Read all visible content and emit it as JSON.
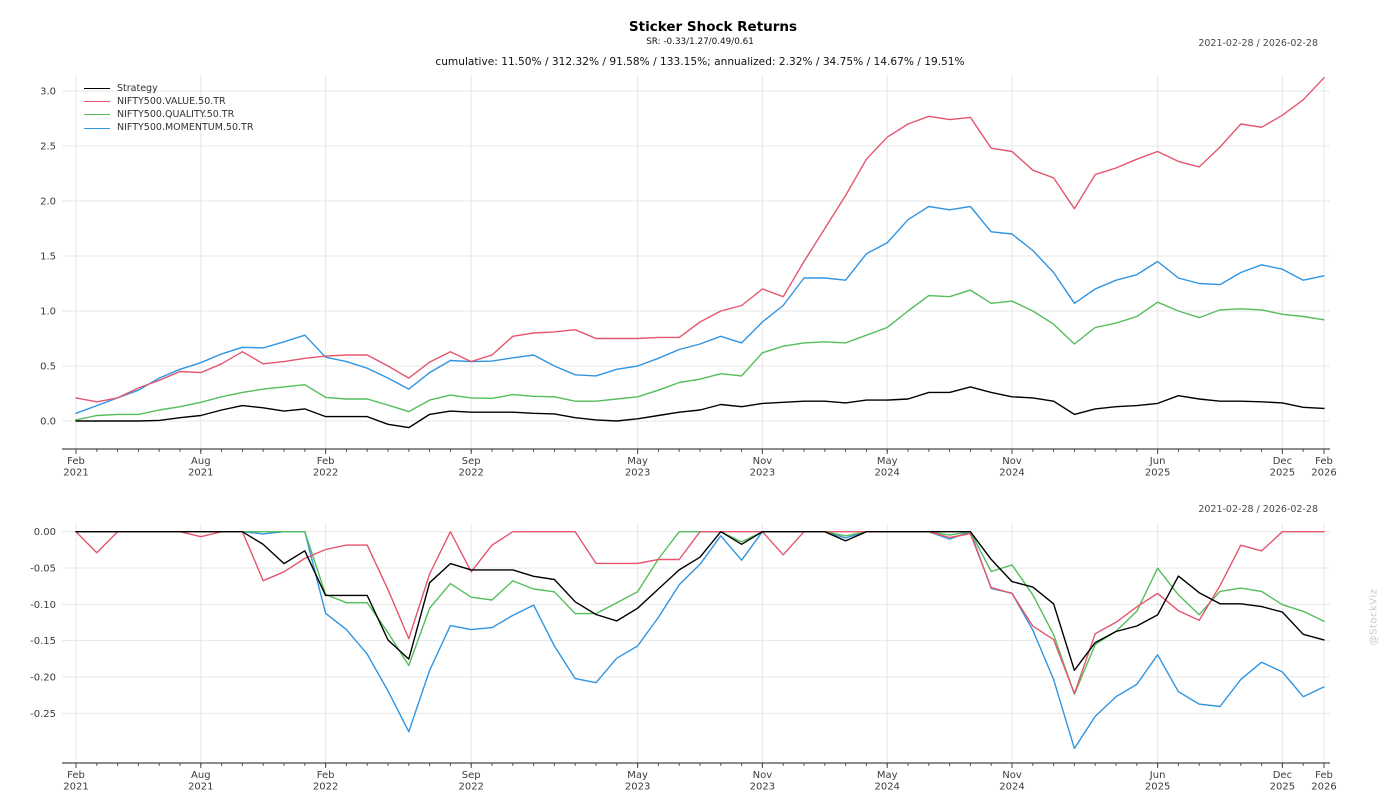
{
  "page": {
    "title": "Sticker Shock Returns",
    "subtitle": "SR: -0.33/1.27/0.49/0.61",
    "stats_line": "cumulative: 11.50% / 312.32% / 91.58% / 133.15%; annualized: 2.32% / 34.75% / 14.67% / 19.51%",
    "watermark": "@StockViz"
  },
  "colors": {
    "strategy": "#000000",
    "value": "#e4566e",
    "quality": "#55bd5b",
    "momentum": "#3095e2",
    "grid": "#e7e7e7",
    "axis": "#4a4a4a",
    "tick_label": "#3c3c3c",
    "date_label": "#4a4a4a",
    "watermark": "#c9c9c9"
  },
  "legend": {
    "items": [
      {
        "label": "Strategy",
        "color_key": "strategy"
      },
      {
        "label": "NIFTY500.VALUE.50.TR",
        "color_key": "value"
      },
      {
        "label": "NIFTY500.QUALITY.50.TR",
        "color_key": "quality"
      },
      {
        "label": "NIFTY500.MOMENTUM.50.TR",
        "color_key": "momentum"
      }
    ]
  },
  "chart_data": [
    {
      "name": "cumulative-returns",
      "type": "line",
      "date_range_label": "2021-02-28 / 2026-02-28",
      "x_interval": "1 month",
      "x_months": [
        "2021-02",
        "2021-03",
        "2021-04",
        "2021-05",
        "2021-06",
        "2021-07",
        "2021-08",
        "2021-09",
        "2021-10",
        "2021-11",
        "2021-12",
        "2022-01",
        "2022-02",
        "2022-03",
        "2022-04",
        "2022-05",
        "2022-06",
        "2022-07",
        "2022-08",
        "2022-09",
        "2022-10",
        "2022-11",
        "2022-12",
        "2023-01",
        "2023-02",
        "2023-03",
        "2023-04",
        "2023-05",
        "2023-06",
        "2023-07",
        "2023-08",
        "2023-09",
        "2023-10",
        "2023-11",
        "2023-12",
        "2024-01",
        "2024-02",
        "2024-03",
        "2024-04",
        "2024-05",
        "2024-06",
        "2024-07",
        "2024-08",
        "2024-09",
        "2024-10",
        "2024-11",
        "2024-12",
        "2025-01",
        "2025-02",
        "2025-03",
        "2025-04",
        "2025-05",
        "2025-06",
        "2025-07",
        "2025-08",
        "2025-09",
        "2025-10",
        "2025-11",
        "2025-12",
        "2026-01",
        "2026-02"
      ],
      "x_ticks": [
        {
          "i": 0,
          "month": "Feb",
          "year": "2021"
        },
        {
          "i": 6,
          "month": "Aug",
          "year": "2021"
        },
        {
          "i": 12,
          "month": "Feb",
          "year": "2022"
        },
        {
          "i": 19,
          "month": "Sep",
          "year": "2022"
        },
        {
          "i": 27,
          "month": "May",
          "year": "2023"
        },
        {
          "i": 33,
          "month": "Nov",
          "year": "2023"
        },
        {
          "i": 39,
          "month": "May",
          "year": "2024"
        },
        {
          "i": 45,
          "month": "Nov",
          "year": "2024"
        },
        {
          "i": 52,
          "month": "Jun",
          "year": "2025"
        },
        {
          "i": 58,
          "month": "Dec",
          "year": "2025"
        },
        {
          "i": 60,
          "month": "Feb",
          "year": "2026"
        }
      ],
      "yticks": [
        {
          "v": 0.0,
          "label": "0.0"
        },
        {
          "v": 0.5,
          "label": "0.5"
        },
        {
          "v": 1.0,
          "label": "1.0"
        },
        {
          "v": 1.5,
          "label": "1.5"
        },
        {
          "v": 2.0,
          "label": "2.0"
        },
        {
          "v": 2.5,
          "label": "2.5"
        },
        {
          "v": 3.0,
          "label": "3.0"
        }
      ],
      "ylim": [
        -0.25,
        3.15
      ],
      "series": [
        {
          "name": "Strategy",
          "color_key": "strategy",
          "values": [
            0,
            0,
            0,
            0,
            0.005,
            0.03,
            0.05,
            0.1,
            0.14,
            0.12,
            0.09,
            0.11,
            0.04,
            0.04,
            0.04,
            -0.03,
            -0.06,
            0.06,
            0.09,
            0.08,
            0.08,
            0.08,
            0.07,
            0.065,
            0.03,
            0.01,
            0,
            0.02,
            0.05,
            0.08,
            0.1,
            0.15,
            0.13,
            0.16,
            0.17,
            0.18,
            0.18,
            0.165,
            0.19,
            0.19,
            0.2,
            0.26,
            0.26,
            0.31,
            0.26,
            0.22,
            0.21,
            0.18,
            0.06,
            0.11,
            0.13,
            0.14,
            0.16,
            0.23,
            0.2,
            0.18,
            0.18,
            0.175,
            0.165,
            0.125,
            0.115
          ]
        },
        {
          "name": "NIFTY500.VALUE.50.TR",
          "color_key": "value",
          "values": [
            0.21,
            0.175,
            0.21,
            0.3,
            0.37,
            0.45,
            0.44,
            0.52,
            0.63,
            0.52,
            0.54,
            0.57,
            0.59,
            0.6,
            0.6,
            0.5,
            0.39,
            0.535,
            0.63,
            0.54,
            0.6,
            0.77,
            0.8,
            0.81,
            0.83,
            0.75,
            0.75,
            0.75,
            0.76,
            0.76,
            0.9,
            1.0,
            1.05,
            1.2,
            1.13,
            1.45,
            1.75,
            2.05,
            2.38,
            2.58,
            2.7,
            2.77,
            2.74,
            2.76,
            2.48,
            2.45,
            2.28,
            2.21,
            1.93,
            2.24,
            2.3,
            2.38,
            2.45,
            2.36,
            2.31,
            2.49,
            2.7,
            2.67,
            2.78,
            2.92,
            3.12
          ]
        },
        {
          "name": "NIFTY500.QUALITY.50.TR",
          "color_key": "quality",
          "values": [
            0.01,
            0.05,
            0.06,
            0.06,
            0.1,
            0.13,
            0.17,
            0.22,
            0.26,
            0.29,
            0.31,
            0.33,
            0.215,
            0.2,
            0.2,
            0.145,
            0.085,
            0.19,
            0.235,
            0.21,
            0.205,
            0.24,
            0.225,
            0.22,
            0.18,
            0.18,
            0.2,
            0.22,
            0.28,
            0.35,
            0.38,
            0.43,
            0.41,
            0.62,
            0.68,
            0.71,
            0.72,
            0.71,
            0.78,
            0.85,
            1.0,
            1.14,
            1.13,
            1.19,
            1.07,
            1.09,
            1.0,
            0.88,
            0.7,
            0.85,
            0.89,
            0.95,
            1.08,
            1.0,
            0.94,
            1.01,
            1.02,
            1.01,
            0.97,
            0.95,
            0.92
          ]
        },
        {
          "name": "NIFTY500.MOMENTUM.50.TR",
          "color_key": "momentum",
          "values": [
            0.07,
            0.14,
            0.21,
            0.28,
            0.39,
            0.47,
            0.53,
            0.61,
            0.67,
            0.665,
            0.72,
            0.78,
            0.58,
            0.54,
            0.48,
            0.39,
            0.29,
            0.44,
            0.55,
            0.54,
            0.545,
            0.575,
            0.6,
            0.5,
            0.42,
            0.41,
            0.47,
            0.5,
            0.57,
            0.65,
            0.7,
            0.77,
            0.71,
            0.9,
            1.05,
            1.3,
            1.3,
            1.28,
            1.52,
            1.62,
            1.83,
            1.95,
            1.92,
            1.95,
            1.72,
            1.7,
            1.55,
            1.35,
            1.07,
            1.2,
            1.28,
            1.33,
            1.45,
            1.3,
            1.25,
            1.24,
            1.35,
            1.42,
            1.38,
            1.28,
            1.32
          ]
        }
      ]
    },
    {
      "name": "drawdowns",
      "type": "line",
      "date_range_label": "2021-02-28 / 2026-02-28",
      "x_interval": "1 month",
      "x_months": [
        "2021-02",
        "2021-03",
        "2021-04",
        "2021-05",
        "2021-06",
        "2021-07",
        "2021-08",
        "2021-09",
        "2021-10",
        "2021-11",
        "2021-12",
        "2022-01",
        "2022-02",
        "2022-03",
        "2022-04",
        "2022-05",
        "2022-06",
        "2022-07",
        "2022-08",
        "2022-09",
        "2022-10",
        "2022-11",
        "2022-12",
        "2023-01",
        "2023-02",
        "2023-03",
        "2023-04",
        "2023-05",
        "2023-06",
        "2023-07",
        "2023-08",
        "2023-09",
        "2023-10",
        "2023-11",
        "2023-12",
        "2024-01",
        "2024-02",
        "2024-03",
        "2024-04",
        "2024-05",
        "2024-06",
        "2024-07",
        "2024-08",
        "2024-09",
        "2024-10",
        "2024-11",
        "2024-12",
        "2025-01",
        "2025-02",
        "2025-03",
        "2025-04",
        "2025-05",
        "2025-06",
        "2025-07",
        "2025-08",
        "2025-09",
        "2025-10",
        "2025-11",
        "2025-12",
        "2026-01",
        "2026-02"
      ],
      "x_ticks": [
        {
          "i": 0,
          "month": "Feb",
          "year": "2021"
        },
        {
          "i": 6,
          "month": "Aug",
          "year": "2021"
        },
        {
          "i": 12,
          "month": "Feb",
          "year": "2022"
        },
        {
          "i": 19,
          "month": "Sep",
          "year": "2022"
        },
        {
          "i": 27,
          "month": "May",
          "year": "2023"
        },
        {
          "i": 33,
          "month": "Nov",
          "year": "2023"
        },
        {
          "i": 39,
          "month": "May",
          "year": "2024"
        },
        {
          "i": 45,
          "month": "Nov",
          "year": "2024"
        },
        {
          "i": 52,
          "month": "Jun",
          "year": "2025"
        },
        {
          "i": 58,
          "month": "Dec",
          "year": "2025"
        },
        {
          "i": 60,
          "month": "Feb",
          "year": "2026"
        }
      ],
      "yticks": [
        {
          "v": 0.0,
          "label": "0.00"
        },
        {
          "v": -0.05,
          "label": "-0.05"
        },
        {
          "v": -0.1,
          "label": "-0.10"
        },
        {
          "v": -0.15,
          "label": "-0.15"
        },
        {
          "v": -0.2,
          "label": "-0.20"
        },
        {
          "v": -0.25,
          "label": "-0.25"
        }
      ],
      "ylim": [
        -0.32,
        0.01
      ],
      "series": [
        {
          "name": "Strategy",
          "color_key": "strategy",
          "values": [
            0,
            0,
            0,
            0,
            0,
            0,
            0,
            0,
            0,
            -0.0175,
            -0.0439,
            -0.0263,
            -0.0877,
            -0.0877,
            -0.0877,
            -0.1491,
            -0.1754,
            -0.0702,
            -0.0439,
            -0.0526,
            -0.0526,
            -0.0526,
            -0.0614,
            -0.0658,
            -0.0965,
            -0.114,
            -0.1228,
            -0.1053,
            -0.0789,
            -0.0526,
            -0.0351,
            0,
            -0.0174,
            0,
            0,
            0,
            0,
            -0.0127,
            0,
            0,
            0,
            0,
            0,
            0,
            -0.0382,
            -0.0687,
            -0.0763,
            -0.0992,
            -0.1908,
            -0.1527,
            -0.1374,
            -0.1298,
            -0.1145,
            -0.0611,
            -0.084,
            -0.0992,
            -0.0992,
            -0.1031,
            -0.1107,
            -0.1412,
            -0.1489
          ]
        },
        {
          "name": "NIFTY500.VALUE.50.TR",
          "color_key": "value",
          "values": [
            0,
            -0.0289,
            0,
            0,
            0,
            0,
            -0.0069,
            0,
            0,
            -0.0675,
            -0.0552,
            -0.0368,
            -0.0245,
            -0.0184,
            -0.0184,
            -0.0798,
            -0.1472,
            -0.0583,
            0,
            -0.0552,
            -0.0184,
            0,
            0,
            0,
            0,
            -0.0437,
            -0.0437,
            -0.0437,
            -0.0383,
            -0.0383,
            0,
            0,
            0,
            0,
            -0.0318,
            0,
            0,
            0,
            0,
            0,
            0,
            0,
            -0.008,
            -0.0027,
            -0.0769,
            -0.0849,
            -0.13,
            -0.1485,
            -0.2228,
            -0.1406,
            -0.1247,
            -0.1034,
            -0.0849,
            -0.1088,
            -0.1221,
            -0.0743,
            -0.0186,
            -0.0265,
            0,
            0,
            0
          ]
        },
        {
          "name": "NIFTY500.QUALITY.50.TR",
          "color_key": "quality",
          "values": [
            0,
            0,
            0,
            0,
            0,
            0,
            0,
            0,
            0,
            0,
            0,
            0,
            -0.0865,
            -0.0977,
            -0.0977,
            -0.1391,
            -0.1842,
            -0.1053,
            -0.0714,
            -0.0902,
            -0.094,
            -0.0677,
            -0.0789,
            -0.0827,
            -0.1128,
            -0.1128,
            -0.0977,
            -0.0827,
            -0.0376,
            0,
            0,
            0,
            -0.014,
            0,
            0,
            0,
            0,
            -0.0058,
            0,
            0,
            0,
            0,
            -0.0047,
            0,
            -0.0548,
            -0.0457,
            -0.0868,
            -0.1416,
            -0.2237,
            -0.1553,
            -0.137,
            -0.1096,
            -0.0502,
            -0.0868,
            -0.1142,
            -0.0822,
            -0.0776,
            -0.0822,
            -0.1005,
            -0.1096,
            -0.1233
          ]
        },
        {
          "name": "NIFTY500.MOMENTUM.50.TR",
          "color_key": "momentum",
          "values": [
            0,
            0,
            0,
            0,
            0,
            0,
            0,
            0,
            0,
            -0.003,
            0,
            0,
            -0.1124,
            -0.1348,
            -0.1685,
            -0.2191,
            -0.2753,
            -0.191,
            -0.1292,
            -0.1348,
            -0.132,
            -0.1152,
            -0.1011,
            -0.1573,
            -0.2022,
            -0.2079,
            -0.1742,
            -0.1573,
            -0.118,
            -0.073,
            -0.0449,
            -0.0056,
            -0.0393,
            0,
            0,
            0,
            0,
            -0.0087,
            0,
            0,
            0,
            0,
            -0.0102,
            0,
            -0.078,
            -0.0847,
            -0.1356,
            -0.2034,
            -0.2983,
            -0.2542,
            -0.2271,
            -0.2102,
            -0.1695,
            -0.2203,
            -0.2373,
            -0.2407,
            -0.2034,
            -0.1797,
            -0.1932,
            -0.2271,
            -0.2136
          ]
        }
      ]
    }
  ]
}
